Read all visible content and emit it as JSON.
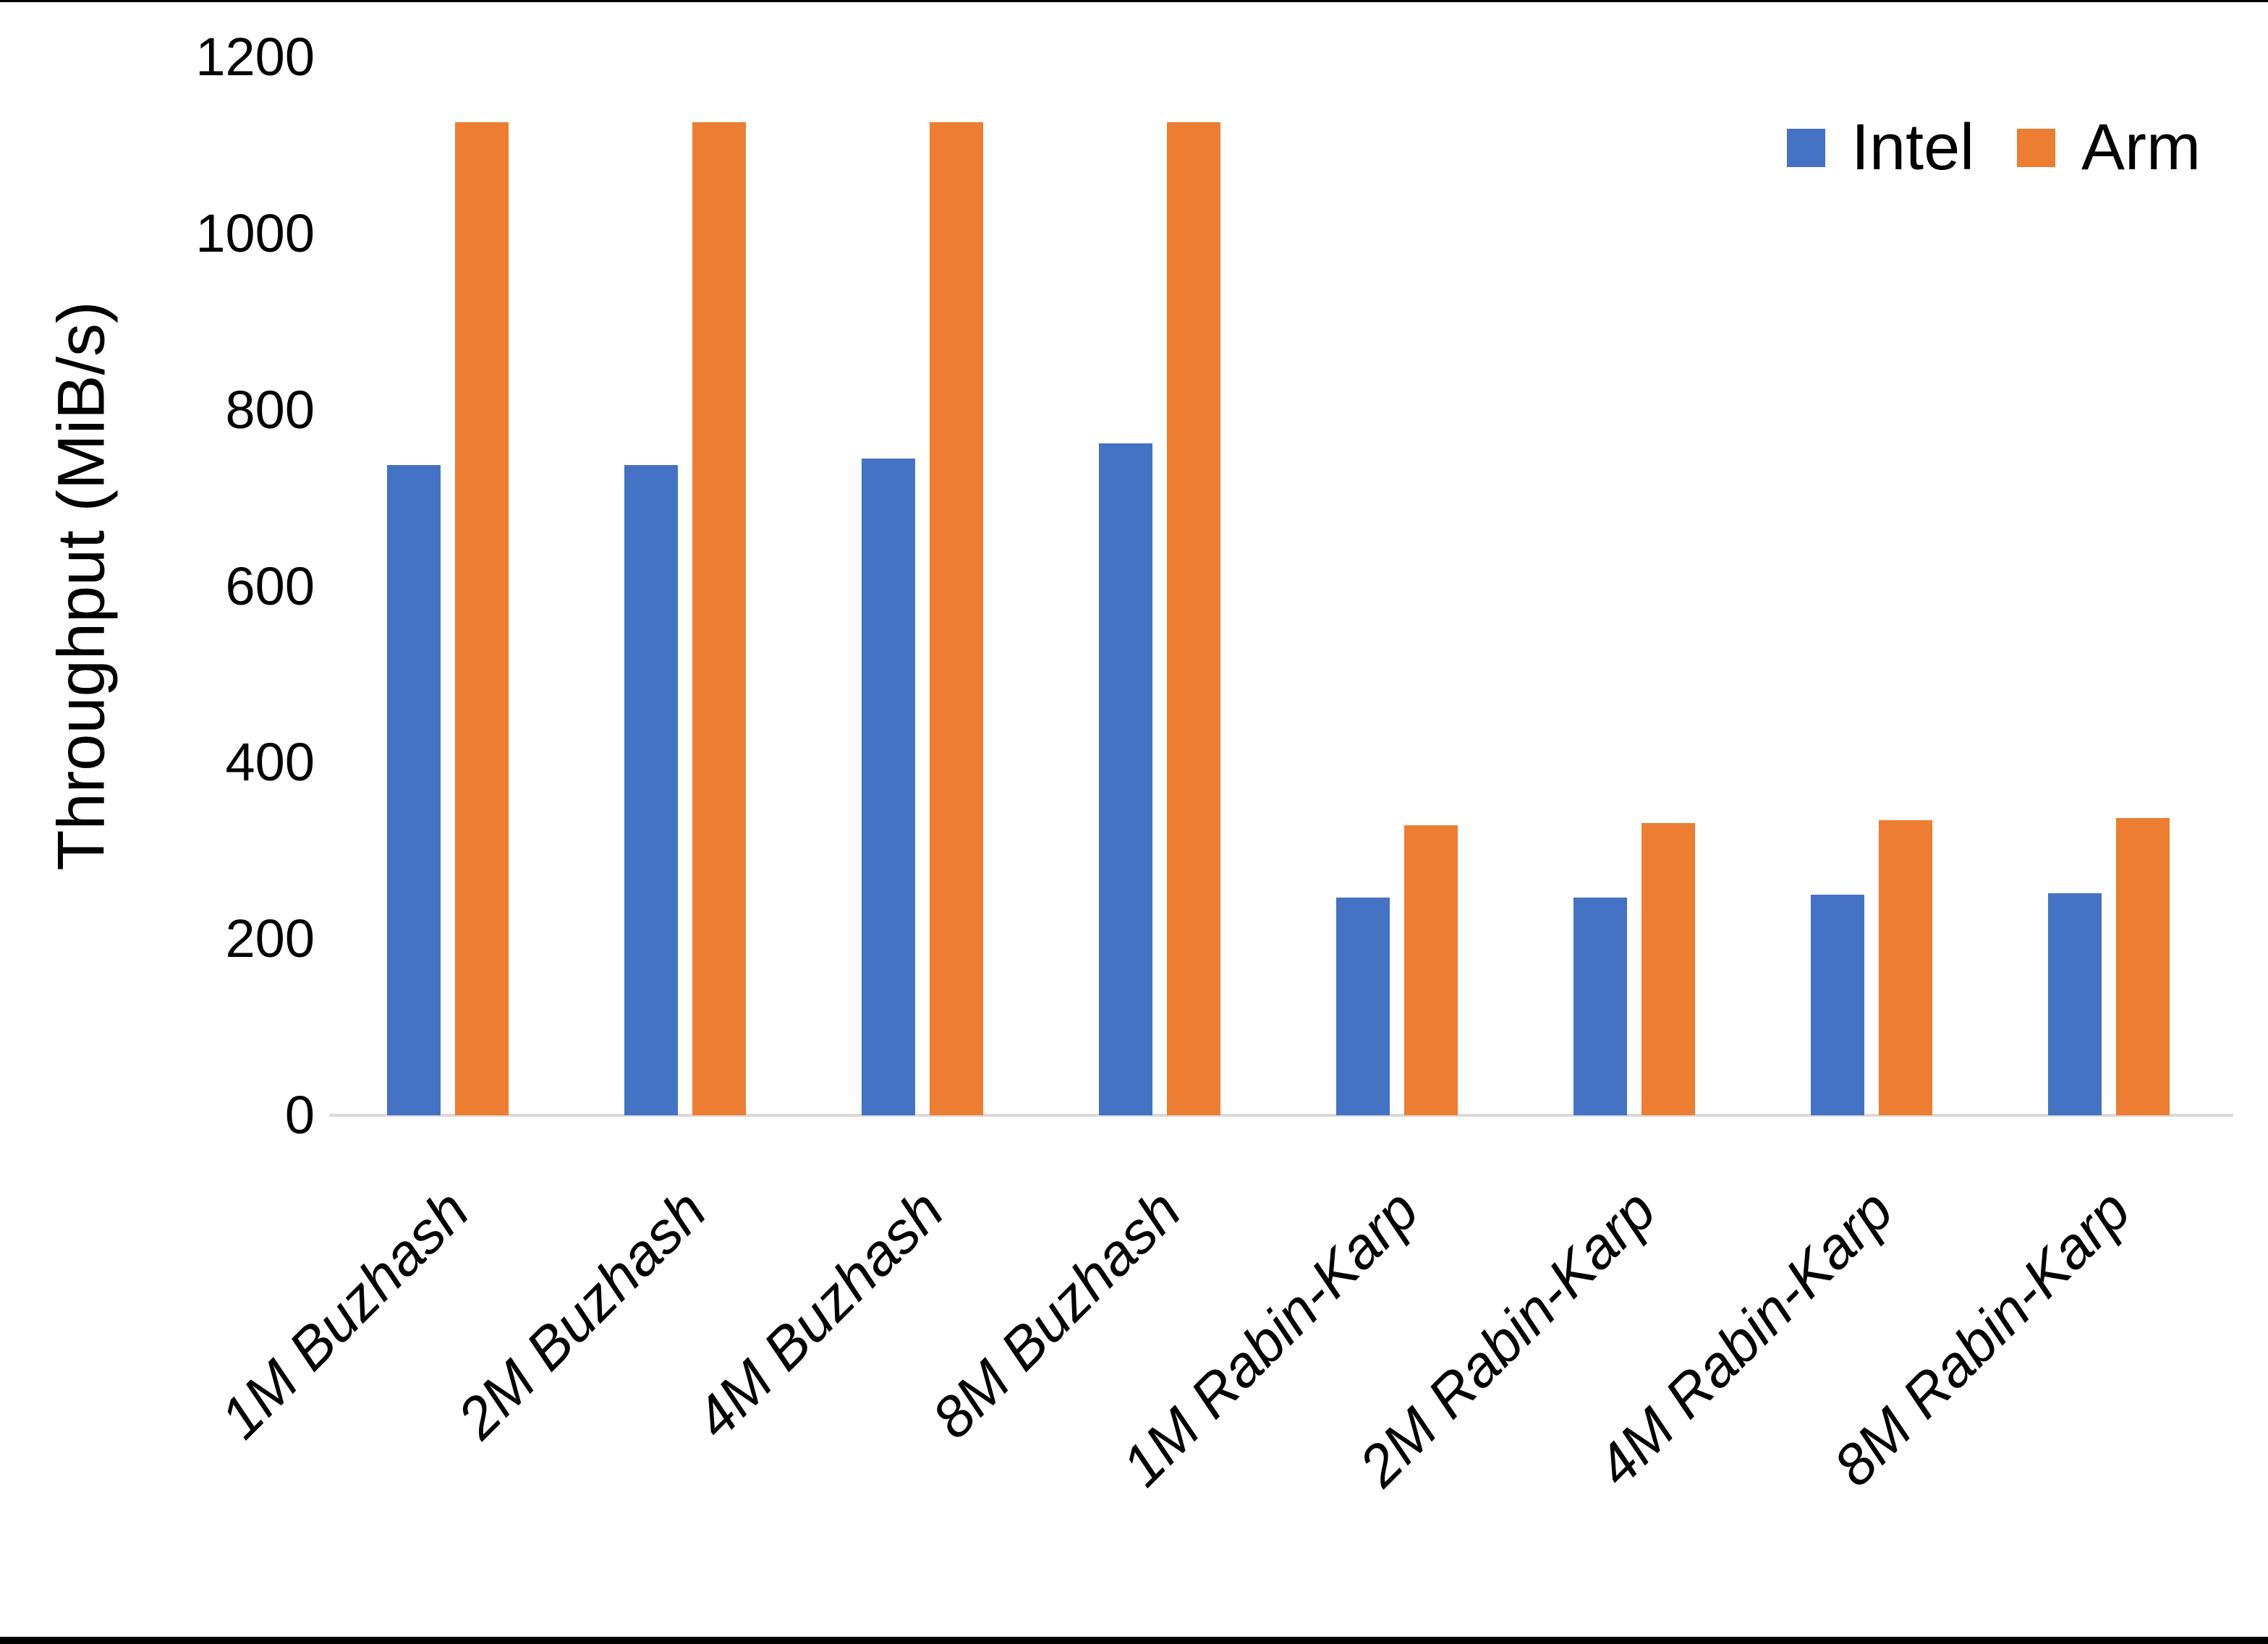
{
  "chart_data": {
    "type": "bar",
    "categories": [
      "1M Buzhash",
      "2M Buzhash",
      "4M Buzhash",
      "8M Buzhash",
      "1M Rabin-Karp",
      "2M Rabin-Karp",
      "4M Rabin-Karp",
      "8M Rabin-Karp"
    ],
    "series": [
      {
        "name": "Intel",
        "color": "#4472C4",
        "values": [
          737,
          737,
          745,
          762,
          247,
          247,
          250,
          252
        ]
      },
      {
        "name": "Arm",
        "color": "#ED7D31",
        "values": [
          1126,
          1126,
          1126,
          1126,
          329,
          331,
          335,
          337
        ]
      }
    ],
    "title": "",
    "xlabel": "",
    "ylabel": "Throughput (MiB/s)",
    "ylim": [
      0,
      1200
    ],
    "yticks": [
      0,
      200,
      400,
      600,
      800,
      1000,
      1200
    ],
    "grid": false,
    "legend_position": "top-right",
    "axis_line_color": "#D9D9D9",
    "text_color": "#000000"
  }
}
